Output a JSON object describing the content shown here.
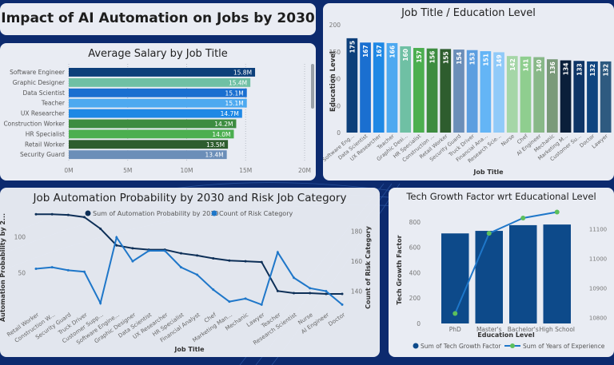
{
  "header": {
    "title": "Impact of AI Automation on Jobs by 2030"
  },
  "colors": {
    "background": "#0c2a6e",
    "panel": "#e9ecf3",
    "accent_dark": "#0d3b66",
    "accent_blue": "#1f77c9",
    "line_green": "#5cbf5c"
  },
  "chart_data": [
    {
      "id": "salary",
      "type": "bar",
      "orientation": "horizontal",
      "title": "Average Salary by Job Title",
      "categories": [
        "Software Engineer",
        "Graphic Designer",
        "Data Scientist",
        "Teacher",
        "UX Researcher",
        "Construction Worker",
        "HR Specialist",
        "Retail Worker",
        "Security Guard"
      ],
      "values": [
        15.8,
        15.4,
        15.1,
        15.1,
        14.7,
        14.2,
        14.0,
        13.5,
        13.4
      ],
      "labels": [
        "15.8M",
        "15.4M",
        "15.1M",
        "15.1M",
        "14.7M",
        "14.2M",
        "14.0M",
        "13.5M",
        "13.4M"
      ],
      "colors": [
        "#0d3f7a",
        "#6fc0a4",
        "#1a6fd0",
        "#4da9f0",
        "#1e88e5",
        "#3d8c40",
        "#4caf50",
        "#2e5d2e",
        "#6b8eb8"
      ],
      "xticks": [
        "0M",
        "5M",
        "10M",
        "15M",
        "20M"
      ],
      "xlim": [
        0,
        20
      ],
      "grid": true
    },
    {
      "id": "education",
      "type": "bar",
      "title": "Job Title / Education Level",
      "xlabel": "Job Title",
      "ylabel": "Education Level",
      "categories": [
        "Software Eng...",
        "Data Scientist",
        "UX Researcher",
        "Teacher",
        "Graphic Desi...",
        "HR Specialist",
        "Construction ...",
        "Retail Worker",
        "Security Guard",
        "Truck Driver",
        "Financial Ana...",
        "Research Scie...",
        "Nurse",
        "Chef",
        "AI Engineer",
        "Mechanic",
        "Marketing M...",
        "Customer Su...",
        "Doctor",
        "Lawyer"
      ],
      "values": [
        175,
        167,
        167,
        166,
        160,
        157,
        156,
        155,
        154,
        153,
        151,
        149,
        142,
        141,
        140,
        136,
        134,
        133,
        132,
        132
      ],
      "colors": [
        "#0d3f7a",
        "#1a6fd0",
        "#1e88e5",
        "#4da9f0",
        "#6fc0a4",
        "#4caf50",
        "#3d8c40",
        "#2e5d2e",
        "#6b8eb8",
        "#5b9ee0",
        "#64b5f6",
        "#90caf9",
        "#a5d6a7",
        "#8fce8f",
        "#88b888",
        "#7a9a7a",
        "#0a1f3a",
        "#0f3566",
        "#0f4580",
        "#2e5a80"
      ],
      "yticks": [
        0,
        50,
        100,
        150,
        200
      ],
      "ylim": [
        0,
        200
      ]
    },
    {
      "id": "automation",
      "type": "line",
      "title": "Job Automation Probability by 2030 and Risk Job Category",
      "xlabel": "Job Title",
      "ylabel_left": "Automation Probability by 2...",
      "ylabel_right": "Count of Risk Category",
      "categories": [
        "Retail Worker",
        "Construction W...",
        "Security Guard",
        "Truck Driver",
        "Customer Supp...",
        "Software Engine...",
        "Graphic Designer",
        "Data Scientist",
        "UX Researcher",
        "HR Specialist",
        "Financial Analyst",
        "Chef",
        "Marketing Man...",
        "Mechanic",
        "Lawyer",
        "Teacher",
        "Research Scientist",
        "Nurse",
        "AI Engineer",
        "Doctor"
      ],
      "series": [
        {
          "name": "Sum of Automation Probability by 2030",
          "axis": "left",
          "color": "#0d2f57",
          "values": [
            131,
            131,
            130,
            127,
            111,
            88,
            84,
            82,
            82,
            77,
            74,
            70,
            67,
            66,
            65,
            25,
            22,
            22,
            21,
            21
          ]
        },
        {
          "name": "Count of Risk Category",
          "axis": "right",
          "color": "#1f77c9",
          "values": [
            155,
            156,
            154,
            153,
            132,
            176,
            160,
            167,
            167,
            156,
            151,
            141,
            133,
            135,
            131,
            166,
            149,
            142,
            140,
            131
          ]
        }
      ],
      "yticks_left": [
        50,
        100
      ],
      "ylim_left": [
        0,
        150
      ],
      "yticks_right": [
        140,
        160,
        180
      ],
      "ylim_right": [
        128,
        182
      ],
      "legend": "top-center"
    },
    {
      "id": "techgrowth",
      "type": "bar",
      "title": "Tech Growth Factor wrt Educational Level",
      "xlabel": "Education Level",
      "ylabel_left": "Tech Growth Factor",
      "ylabel_right": "Years of Experience",
      "categories": [
        "PhD",
        "Master's",
        "Bachelor's",
        "High School"
      ],
      "series": [
        {
          "name": "Sum of Tech Growth Factor",
          "type": "bar",
          "axis": "left",
          "color": "#0d4a8a",
          "values": [
            710,
            730,
            775,
            780
          ]
        },
        {
          "name": "Sum of Years of Experience",
          "type": "line",
          "axis": "right",
          "color": "#1f77c9",
          "marker_color": "#5cbf5c",
          "values": [
            10812,
            11068,
            11117,
            11136
          ]
        }
      ],
      "yticks_left": [
        0,
        200,
        400,
        600,
        800
      ],
      "ylim_left": [
        0,
        850
      ],
      "yticks_right": [
        10800,
        10900,
        11000,
        11100
      ],
      "ylim_right": [
        10780,
        11145
      ],
      "legend": "bottom"
    }
  ]
}
